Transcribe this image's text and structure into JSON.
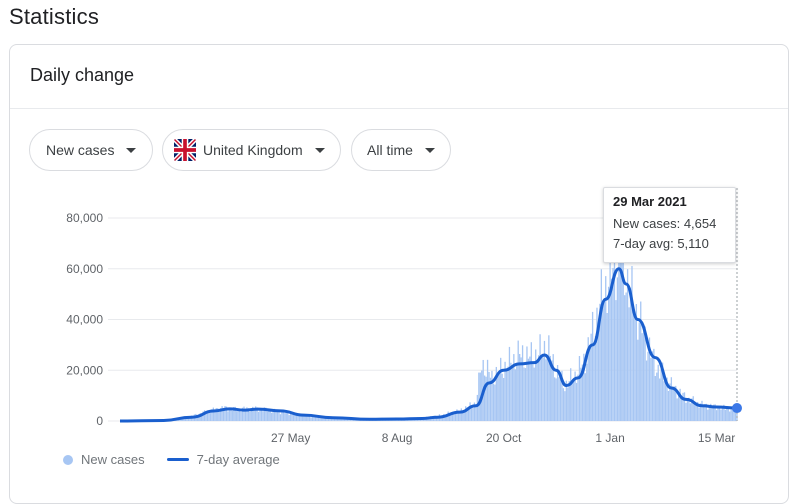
{
  "page": {
    "title": "Statistics"
  },
  "card": {
    "title": "Daily change"
  },
  "filters": {
    "metric": "New cases",
    "country": "United Kingdom",
    "range": "All time"
  },
  "tooltip": {
    "date": "29 Mar 2021",
    "new_cases_label": "New cases:",
    "new_cases_value": "4,654",
    "avg_label": "7-day avg:",
    "avg_value": "5,110"
  },
  "legend": {
    "bars": "New cases",
    "line": "7-day average"
  },
  "colors": {
    "bar": "#a7c6f3",
    "line": "#1a5fce",
    "grid": "#e8eaed",
    "axis_text": "#5f6368"
  },
  "chart_data": {
    "type": "bar",
    "title": "",
    "xlabel": "",
    "ylabel": "",
    "ylim": [
      0,
      80000
    ],
    "y_ticks": [
      0,
      20000,
      40000,
      60000,
      80000
    ],
    "y_tick_labels": [
      "0",
      "20,000",
      "40,000",
      "60,000",
      "80,000"
    ],
    "x_ticks": [
      "27 May",
      "8 Aug",
      "20 Oct",
      "1 Jan",
      "15 Mar"
    ],
    "x_tick_dates": [
      "2020-05-27",
      "2020-08-08",
      "2020-10-20",
      "2021-01-01",
      "2021-03-15"
    ],
    "x_range": [
      "2020-01-31",
      "2021-03-29"
    ],
    "series": [
      {
        "name": "New cases",
        "type": "bar",
        "points": [
          [
            "2020-01-31",
            0
          ],
          [
            "2020-03-01",
            100
          ],
          [
            "2020-03-15",
            1000
          ],
          [
            "2020-04-01",
            4000
          ],
          [
            "2020-04-10",
            5200
          ],
          [
            "2020-04-20",
            4600
          ],
          [
            "2020-05-01",
            5000
          ],
          [
            "2020-05-15",
            4200
          ],
          [
            "2020-06-01",
            2500
          ],
          [
            "2020-06-20",
            1400
          ],
          [
            "2020-07-10",
            800
          ],
          [
            "2020-07-25",
            700
          ],
          [
            "2020-08-08",
            900
          ],
          [
            "2020-08-25",
            1200
          ],
          [
            "2020-09-05",
            2000
          ],
          [
            "2020-09-20",
            4000
          ],
          [
            "2020-10-01",
            7000
          ],
          [
            "2020-10-05",
            22900
          ],
          [
            "2020-10-12",
            17000
          ],
          [
            "2020-10-20",
            21000
          ],
          [
            "2020-10-31",
            26000
          ],
          [
            "2020-11-08",
            25000
          ],
          [
            "2020-11-15",
            27000
          ],
          [
            "2020-11-18",
            30000
          ],
          [
            "2020-11-25",
            20000
          ],
          [
            "2020-12-01",
            14000
          ],
          [
            "2020-12-08",
            18000
          ],
          [
            "2020-12-15",
            24000
          ],
          [
            "2020-12-20",
            35000
          ],
          [
            "2020-12-29",
            53000
          ],
          [
            "2021-01-05",
            62000
          ],
          [
            "2021-01-08",
            68000
          ],
          [
            "2021-01-15",
            50000
          ],
          [
            "2021-01-22",
            38000
          ],
          [
            "2021-02-01",
            22000
          ],
          [
            "2021-02-12",
            14000
          ],
          [
            "2021-02-22",
            9000
          ],
          [
            "2021-03-05",
            6500
          ],
          [
            "2021-03-15",
            5500
          ],
          [
            "2021-03-29",
            4654
          ]
        ]
      },
      {
        "name": "7-day average",
        "type": "line",
        "points": [
          [
            "2020-01-31",
            0
          ],
          [
            "2020-03-01",
            200
          ],
          [
            "2020-03-20",
            1500
          ],
          [
            "2020-04-05",
            4000
          ],
          [
            "2020-04-15",
            4800
          ],
          [
            "2020-04-25",
            4300
          ],
          [
            "2020-05-05",
            4700
          ],
          [
            "2020-05-20",
            4000
          ],
          [
            "2020-06-05",
            2300
          ],
          [
            "2020-06-25",
            1300
          ],
          [
            "2020-07-20",
            700
          ],
          [
            "2020-08-08",
            800
          ],
          [
            "2020-08-25",
            1000
          ],
          [
            "2020-09-05",
            1500
          ],
          [
            "2020-09-20",
            3500
          ],
          [
            "2020-10-01",
            6000
          ],
          [
            "2020-10-10",
            15000
          ],
          [
            "2020-10-20",
            20000
          ],
          [
            "2020-10-31",
            22500
          ],
          [
            "2020-11-10",
            23000
          ],
          [
            "2020-11-17",
            26000
          ],
          [
            "2020-11-25",
            20000
          ],
          [
            "2020-12-02",
            14000
          ],
          [
            "2020-12-10",
            17000
          ],
          [
            "2020-12-20",
            30000
          ],
          [
            "2020-12-29",
            48000
          ],
          [
            "2021-01-07",
            60000
          ],
          [
            "2021-01-12",
            54000
          ],
          [
            "2021-01-20",
            40000
          ],
          [
            "2021-02-01",
            25000
          ],
          [
            "2021-02-12",
            13000
          ],
          [
            "2021-02-22",
            8500
          ],
          [
            "2021-03-05",
            6000
          ],
          [
            "2021-03-15",
            5500
          ],
          [
            "2021-03-29",
            5110
          ]
        ]
      }
    ],
    "legend": "bottom-left",
    "grid": true
  }
}
